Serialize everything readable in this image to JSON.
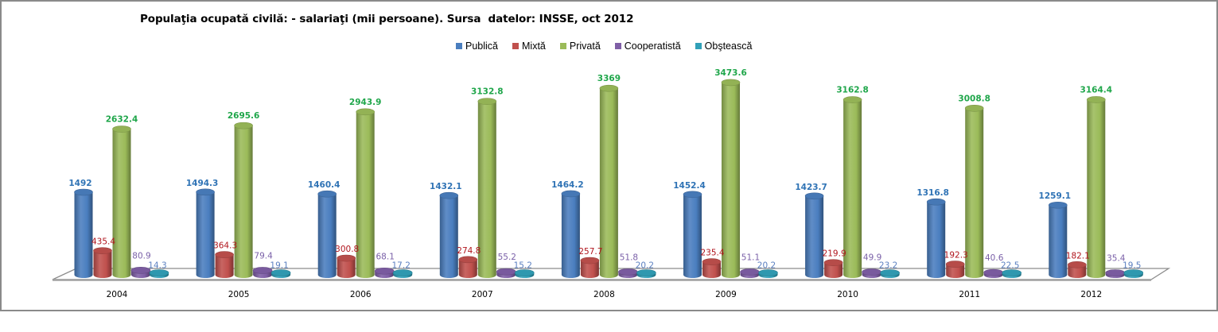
{
  "chart_data": {
    "type": "bar",
    "subtype": "3d-cylinder-clustered",
    "title": "Populaţia ocupată civilă: - salariaţi (mii persoane). Sursa  datelor: INSSE, oct 2012",
    "xlabel": "",
    "ylabel": "",
    "ylim": [
      0,
      3500
    ],
    "grid": false,
    "legend_position": "top",
    "categories": [
      "2004",
      "2005",
      "2006",
      "2007",
      "2008",
      "2009",
      "2010",
      "2011",
      "2012"
    ],
    "series": [
      {
        "name": "Publică",
        "color": "#4a7ebf",
        "label_color": "#2f73b5",
        "label_bold": true,
        "values": [
          1492,
          1494.3,
          1460.4,
          1432.1,
          1464.2,
          1452.4,
          1423.7,
          1316.8,
          1259.1
        ],
        "labels": [
          "1492",
          "1494.3",
          "1460.4",
          "1432.1",
          "1464.2",
          "1452.4",
          "1423.7",
          "1316.8",
          "1259.1"
        ]
      },
      {
        "name": "Mixtă",
        "color": "#c0504d",
        "label_color": "#b0141c",
        "label_bold": false,
        "values": [
          435.4,
          364.3,
          300.8,
          274.8,
          257.7,
          235.4,
          219.9,
          192.3,
          182.1
        ],
        "labels": [
          "435.4",
          "364.3",
          "300.8",
          "274.8",
          "257.7",
          "235.4",
          "219.9",
          "192.3",
          "182.1"
        ]
      },
      {
        "name": "Privată",
        "color": "#9bbb59",
        "label_color": "#1fa64a",
        "label_bold": true,
        "values": [
          2632.4,
          2695.6,
          2943.9,
          3132.8,
          3369,
          3473.6,
          3162.8,
          3008.8,
          3164.4
        ],
        "labels": [
          "2632.4",
          "2695.6",
          "2943.9",
          "3132.8",
          "3369",
          "3473.6",
          "3162.8",
          "3008.8",
          "3164.4"
        ]
      },
      {
        "name": "Cooperatistă",
        "color": "#7f5fa6",
        "label_color": "#7a60a8",
        "label_bold": false,
        "values": [
          80.9,
          79.4,
          68.1,
          55.2,
          51.8,
          51.1,
          49.9,
          40.6,
          35.4
        ],
        "labels": [
          "80.9",
          "79.4",
          "68.1",
          "55.2",
          "51.8",
          "51.1",
          "49.9",
          "40.6",
          "35.4"
        ]
      },
      {
        "name": "Obştească",
        "color": "#31a0b8",
        "label_color": "#5a7fc0",
        "label_bold": false,
        "values": [
          14.3,
          19.1,
          17.2,
          15.2,
          20.2,
          20.2,
          23.2,
          22.5,
          19.5
        ],
        "labels": [
          "14.3",
          "19.1",
          "17.2",
          "15.2",
          "20.2",
          "20.2",
          "23.2",
          "22.5",
          "19.5"
        ]
      }
    ]
  }
}
